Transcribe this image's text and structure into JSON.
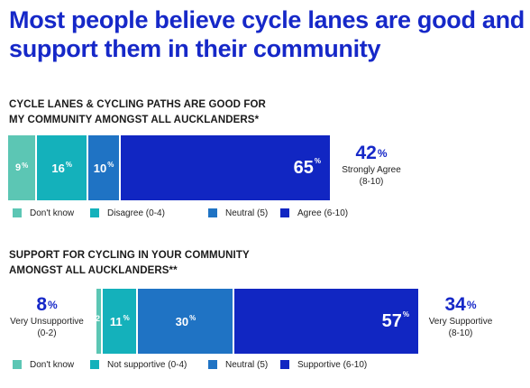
{
  "title": "Most people believe cycle lanes are good and support them in their community",
  "colors": {
    "dont_know": "#5cc6b4",
    "disagree": "#14b1bb",
    "neutral": "#1f73c4",
    "agree": "#1126c2",
    "accent": "#1628c8"
  },
  "chart_data": [
    {
      "type": "bar",
      "orientation": "horizontal-stacked",
      "title": "CYCLE LANES & CYCLING PATHS ARE GOOD FOR MY COMMUNITY AMONGST ALL  AUCKLANDERS*",
      "categories": [
        "Don't know",
        "Disagree (0-4)",
        "Neutral (5)",
        "Agree (6-10)"
      ],
      "values": [
        9,
        16,
        10,
        65
      ],
      "value_labels": [
        "9",
        "16",
        "10",
        "65"
      ],
      "percent_sign": "%",
      "legend": "bottom",
      "callout_right": {
        "value": "42",
        "label": "Strongly Agree",
        "range": "(8-10)"
      }
    },
    {
      "type": "bar",
      "orientation": "horizontal-stacked",
      "title": "SUPPORT FOR CYCLING IN YOUR COMMUNITY AMONGST ALL AUCKLANDERS**",
      "categories": [
        "Don't know",
        "Not supportive (0-4)",
        "Neutral (5)",
        "Supportive (6-10)"
      ],
      "values": [
        2,
        11,
        30,
        57
      ],
      "value_labels": [
        "2",
        "11",
        "30",
        "57"
      ],
      "percent_sign": "%",
      "legend": "bottom",
      "callout_left": {
        "value": "8",
        "label": "Very Unsupportive",
        "range": "(0-2)"
      },
      "callout_right": {
        "value": "34",
        "label": "Very Supportive",
        "range": "(8-10)"
      }
    }
  ]
}
